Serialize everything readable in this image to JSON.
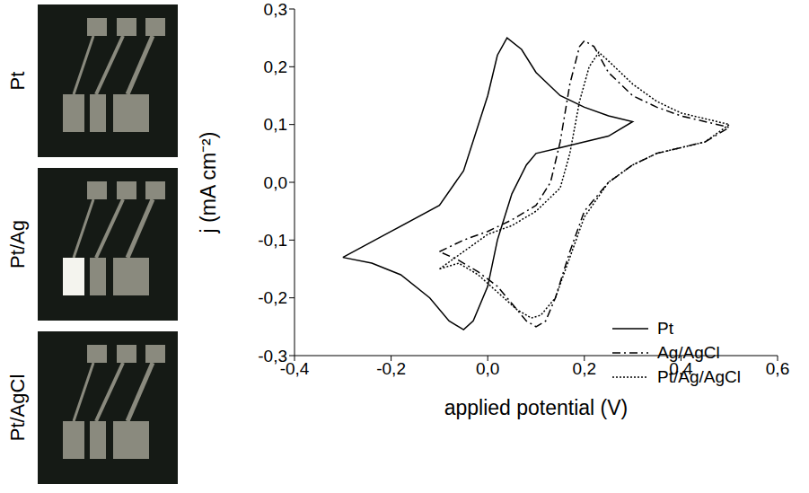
{
  "panels": [
    "Pt",
    "Pt/Ag",
    "Pt/AgCl"
  ],
  "chart_data": {
    "type": "line",
    "x_label": "applied potential (V)",
    "y_label": "j (mA cm⁻²)",
    "xlim": [
      -0.4,
      0.6
    ],
    "xticks": [
      {
        "value": -0.4,
        "label": "-0,4"
      },
      {
        "value": -0.2,
        "label": "-0,2"
      },
      {
        "value": 0,
        "label": "0,0"
      },
      {
        "value": 0.2,
        "label": "0,2"
      },
      {
        "value": 0.4,
        "label": "0,4"
      },
      {
        "value": 0.6,
        "label": "0,6"
      }
    ],
    "ylim": [
      -0.3,
      0.3
    ],
    "yticks": [
      {
        "value": -0.3,
        "label": "-0,3"
      },
      {
        "value": -0.2,
        "label": "-0,2"
      },
      {
        "value": -0.1,
        "label": "-0,1"
      },
      {
        "value": 0,
        "label": "0,0"
      },
      {
        "value": 0.1,
        "label": "0,1"
      },
      {
        "value": 0.2,
        "label": "0,2"
      },
      {
        "value": 0.3,
        "label": "0,3"
      }
    ],
    "legend": "lower right",
    "series": [
      {
        "name": "Pt",
        "color": "#000000",
        "line_style": "solid",
        "x": [
          -0.3,
          -0.2,
          -0.1,
          -0.05,
          0.0,
          0.02,
          0.04,
          0.07,
          0.1,
          0.15,
          0.2,
          0.25,
          0.3,
          0.25,
          0.2,
          0.15,
          0.1,
          0.08,
          0.05,
          0.02,
          0.0,
          -0.03,
          -0.05,
          -0.08,
          -0.12,
          -0.18,
          -0.24,
          -0.3
        ],
        "values": [
          -0.13,
          -0.085,
          -0.04,
          0.02,
          0.15,
          0.22,
          0.25,
          0.23,
          0.19,
          0.15,
          0.13,
          0.115,
          0.105,
          0.08,
          0.07,
          0.06,
          0.05,
          0.03,
          -0.02,
          -0.1,
          -0.18,
          -0.24,
          -0.255,
          -0.24,
          -0.2,
          -0.16,
          -0.14,
          -0.13
        ]
      },
      {
        "name": "Ag/AgCl",
        "color": "#000000",
        "line_style": "dashdot",
        "x": [
          -0.1,
          -0.05,
          0.0,
          0.05,
          0.1,
          0.13,
          0.15,
          0.17,
          0.19,
          0.2,
          0.22,
          0.25,
          0.3,
          0.35,
          0.4,
          0.45,
          0.5,
          0.45,
          0.4,
          0.35,
          0.3,
          0.25,
          0.2,
          0.17,
          0.14,
          0.12,
          0.1,
          0.08,
          0.05,
          0.02,
          -0.02,
          -0.06,
          -0.1
        ],
        "values": [
          -0.12,
          -0.1,
          -0.085,
          -0.065,
          -0.04,
          0.0,
          0.07,
          0.17,
          0.235,
          0.245,
          0.235,
          0.19,
          0.15,
          0.13,
          0.115,
          0.105,
          0.095,
          0.07,
          0.06,
          0.05,
          0.03,
          0.0,
          -0.05,
          -0.12,
          -0.2,
          -0.24,
          -0.25,
          -0.24,
          -0.21,
          -0.18,
          -0.155,
          -0.135,
          -0.12
        ]
      },
      {
        "name": "Pt/Ag/AgCl",
        "color": "#000000",
        "line_style": "dotted",
        "x": [
          -0.1,
          -0.05,
          0.0,
          0.05,
          0.1,
          0.15,
          0.17,
          0.19,
          0.21,
          0.23,
          0.25,
          0.3,
          0.35,
          0.4,
          0.45,
          0.5,
          0.45,
          0.4,
          0.35,
          0.3,
          0.25,
          0.2,
          0.17,
          0.14,
          0.11,
          0.09,
          0.06,
          0.02,
          -0.02,
          -0.06,
          -0.1
        ],
        "values": [
          -0.15,
          -0.12,
          -0.09,
          -0.075,
          -0.05,
          -0.01,
          0.05,
          0.14,
          0.2,
          0.225,
          0.21,
          0.17,
          0.14,
          0.12,
          0.11,
          0.1,
          0.07,
          0.06,
          0.05,
          0.03,
          0.0,
          -0.06,
          -0.13,
          -0.2,
          -0.23,
          -0.235,
          -0.22,
          -0.19,
          -0.16,
          -0.14,
          -0.15
        ]
      }
    ]
  }
}
